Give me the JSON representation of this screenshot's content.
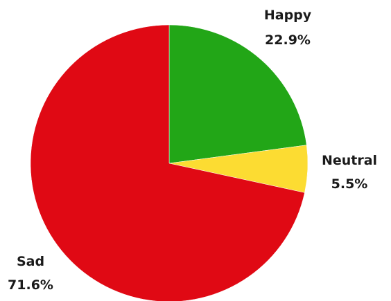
{
  "chart_data": {
    "type": "pie",
    "slices": [
      {
        "label": "Happy",
        "value": 22.9,
        "value_text": "22.9%",
        "color": "#22a617"
      },
      {
        "label": "Neutral",
        "value": 5.5,
        "value_text": "5.5%",
        "color": "#fcdc32"
      },
      {
        "label": "Sad",
        "value": 71.6,
        "value_text": "71.6%",
        "color": "#e00914"
      }
    ],
    "start_angle_deg": 0,
    "direction": "clockwise",
    "legend": "none"
  }
}
